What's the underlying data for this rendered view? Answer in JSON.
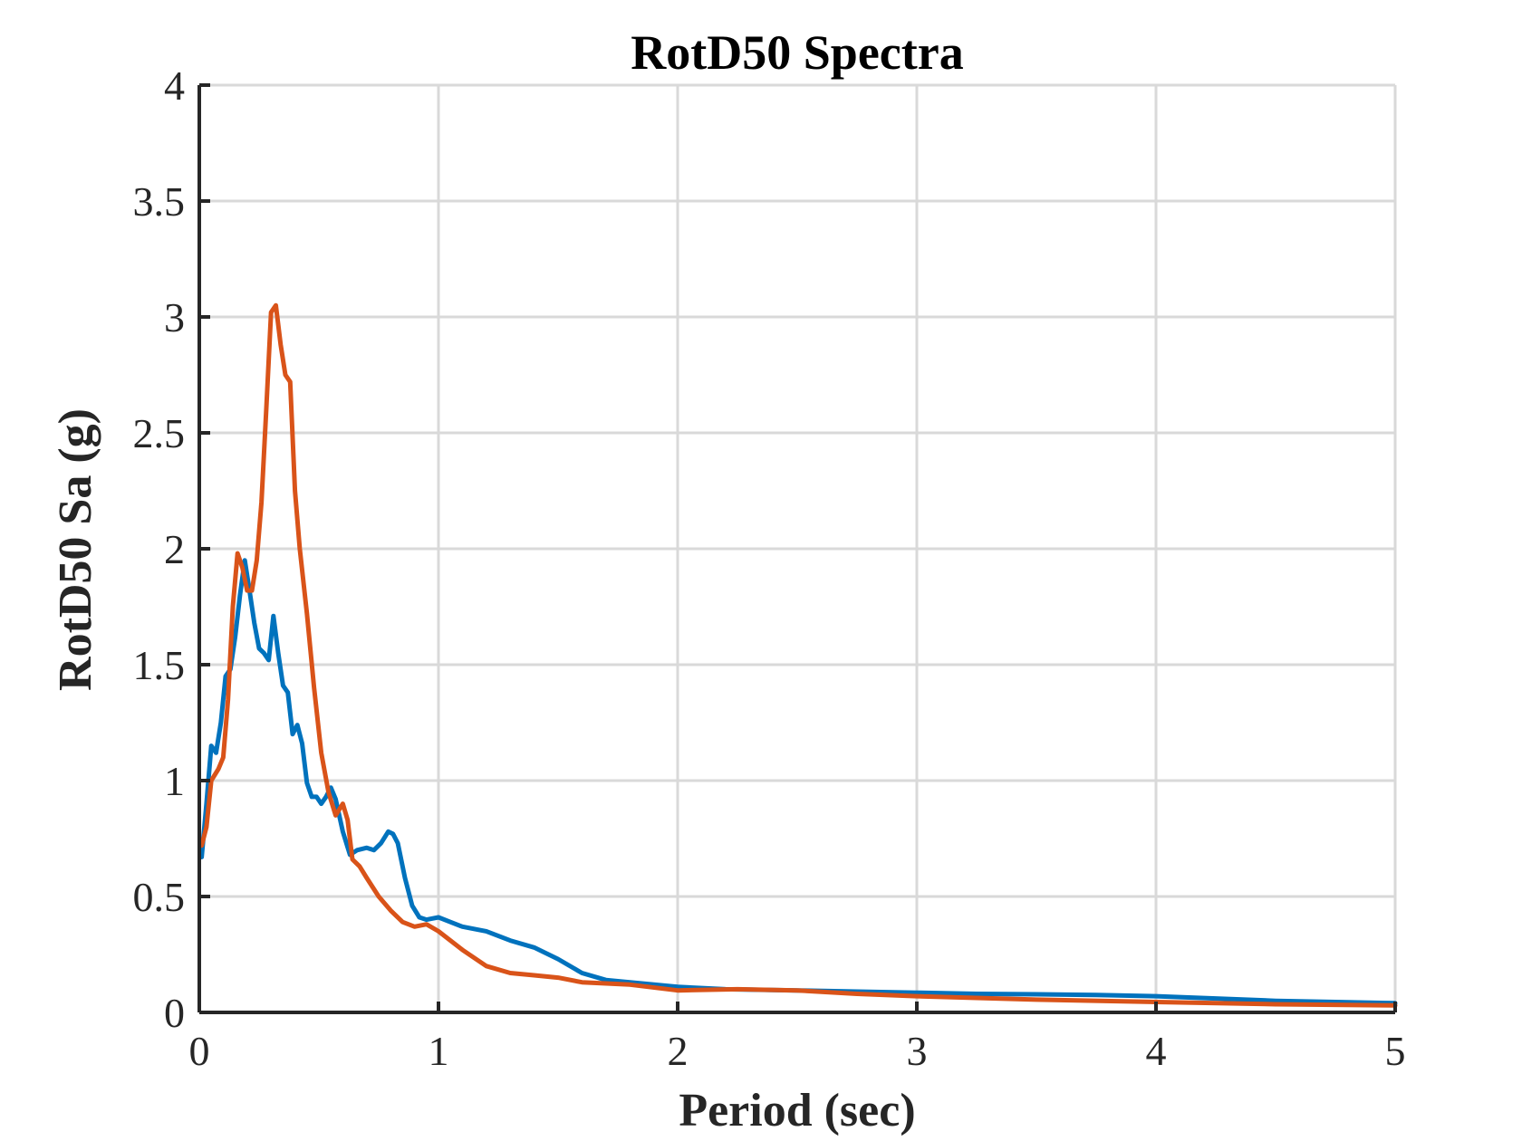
{
  "chart_data": {
    "type": "line",
    "title": "RotD50 Spectra",
    "xlabel": "Period (sec)",
    "ylabel": "RotD50 Sa (g)",
    "xlim": [
      0,
      5
    ],
    "ylim": [
      0,
      4
    ],
    "xticks": [
      0,
      1,
      2,
      3,
      4,
      5
    ],
    "xtick_labels": [
      "0",
      "1",
      "2",
      "3",
      "4",
      "5"
    ],
    "yticks": [
      0,
      0.5,
      1,
      1.5,
      2,
      2.5,
      3,
      3.5,
      4
    ],
    "ytick_labels": [
      "0",
      "0.5",
      "1",
      "1.5",
      "2",
      "2.5",
      "3",
      "3.5",
      "4"
    ],
    "grid": true,
    "series": [
      {
        "color": "#0072bd",
        "x": [
          0.01,
          0.03,
          0.05,
          0.07,
          0.09,
          0.11,
          0.13,
          0.15,
          0.17,
          0.19,
          0.21,
          0.23,
          0.25,
          0.27,
          0.29,
          0.31,
          0.33,
          0.35,
          0.37,
          0.39,
          0.41,
          0.43,
          0.45,
          0.47,
          0.49,
          0.51,
          0.53,
          0.55,
          0.57,
          0.6,
          0.63,
          0.66,
          0.7,
          0.73,
          0.76,
          0.79,
          0.81,
          0.83,
          0.86,
          0.89,
          0.92,
          0.95,
          1.0,
          1.05,
          1.1,
          1.2,
          1.3,
          1.4,
          1.5,
          1.6,
          1.7,
          1.8,
          2.0,
          2.2,
          2.5,
          2.75,
          3.0,
          3.25,
          3.5,
          3.75,
          4.0,
          4.25,
          4.5,
          4.75,
          5.0
        ],
        "values": [
          0.67,
          0.9,
          1.15,
          1.12,
          1.25,
          1.45,
          1.48,
          1.62,
          1.8,
          1.95,
          1.82,
          1.68,
          1.57,
          1.55,
          1.52,
          1.71,
          1.55,
          1.41,
          1.38,
          1.2,
          1.24,
          1.16,
          0.99,
          0.93,
          0.93,
          0.9,
          0.93,
          0.97,
          0.92,
          0.78,
          0.68,
          0.7,
          0.71,
          0.7,
          0.73,
          0.78,
          0.77,
          0.73,
          0.58,
          0.46,
          0.41,
          0.4,
          0.41,
          0.39,
          0.37,
          0.35,
          0.31,
          0.28,
          0.23,
          0.17,
          0.14,
          0.13,
          0.11,
          0.1,
          0.095,
          0.09,
          0.085,
          0.08,
          0.078,
          0.075,
          0.07,
          0.06,
          0.05,
          0.045,
          0.04
        ]
      },
      {
        "color": "#d95319",
        "x": [
          0.01,
          0.03,
          0.05,
          0.08,
          0.1,
          0.12,
          0.14,
          0.16,
          0.18,
          0.2,
          0.22,
          0.24,
          0.26,
          0.28,
          0.3,
          0.32,
          0.34,
          0.36,
          0.38,
          0.4,
          0.42,
          0.45,
          0.48,
          0.51,
          0.54,
          0.57,
          0.6,
          0.62,
          0.64,
          0.67,
          0.7,
          0.75,
          0.8,
          0.85,
          0.9,
          0.95,
          1.0,
          1.1,
          1.2,
          1.3,
          1.4,
          1.5,
          1.6,
          1.8,
          2.0,
          2.25,
          2.5,
          2.75,
          3.0,
          3.5,
          4.0,
          4.5,
          5.0
        ],
        "values": [
          0.72,
          0.8,
          1.0,
          1.05,
          1.1,
          1.35,
          1.75,
          1.98,
          1.92,
          1.82,
          1.82,
          1.95,
          2.2,
          2.6,
          3.02,
          3.05,
          2.88,
          2.75,
          2.72,
          2.25,
          2.0,
          1.72,
          1.4,
          1.12,
          0.95,
          0.85,
          0.9,
          0.83,
          0.66,
          0.63,
          0.58,
          0.5,
          0.44,
          0.39,
          0.37,
          0.38,
          0.35,
          0.27,
          0.2,
          0.17,
          0.16,
          0.15,
          0.13,
          0.12,
          0.095,
          0.1,
          0.095,
          0.08,
          0.07,
          0.055,
          0.045,
          0.035,
          0.03
        ]
      }
    ]
  }
}
